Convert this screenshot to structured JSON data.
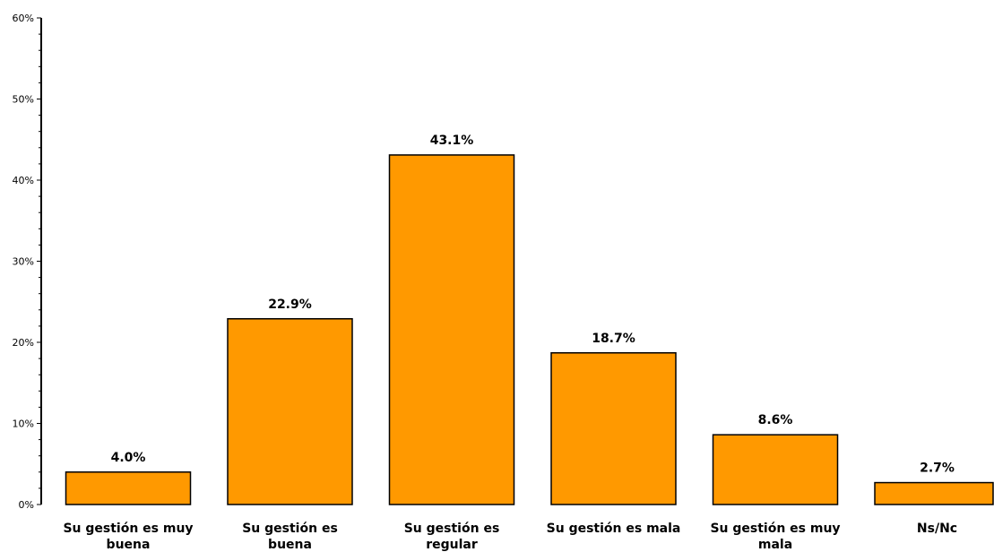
{
  "chart_data": {
    "type": "bar",
    "categories": [
      [
        "Su gestión es muy",
        "buena"
      ],
      [
        "Su gestión es",
        "buena"
      ],
      [
        "Su gestión es",
        "regular"
      ],
      [
        "Su gestión es mala"
      ],
      [
        "Su gestión es muy",
        "mala"
      ],
      [
        "Ns/Nc"
      ]
    ],
    "values": [
      4.0,
      22.9,
      43.1,
      18.7,
      8.6,
      2.7
    ],
    "value_labels": [
      "4.0%",
      "22.9%",
      "43.1%",
      "18.7%",
      "8.6%",
      "2.7%"
    ],
    "ylim": [
      0,
      60
    ],
    "yticks": [
      0,
      10,
      20,
      30,
      40,
      50,
      60
    ],
    "ytick_labels": [
      "0%",
      "10%",
      "20%",
      "30%",
      "40%",
      "50%",
      "60%"
    ],
    "grid": false,
    "colors": {
      "bar_fill": "#ff9900",
      "bar_stroke": "#000000",
      "axis": "#000000"
    }
  }
}
